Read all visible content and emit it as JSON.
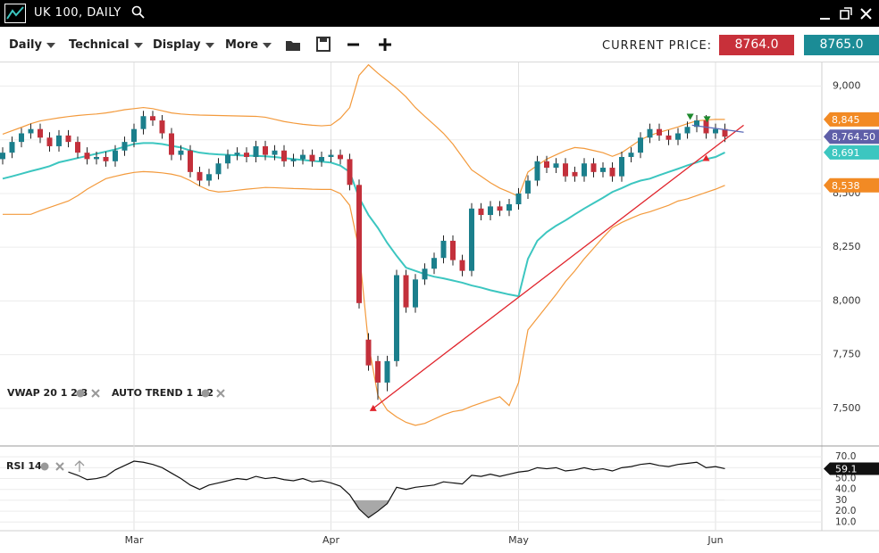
{
  "header": {
    "title": "UK 100, DAILY"
  },
  "toolbar": {
    "menus": [
      "Daily",
      "Technical",
      "Display",
      "More"
    ],
    "current_price_label": "CURRENT PRICE:",
    "bid": "8764.0",
    "ask": "8765.0"
  },
  "chart_data": [
    {
      "type": "candlestick",
      "categories": [
        null,
        null,
        null,
        null,
        null,
        null,
        null,
        null,
        null,
        null,
        null,
        null,
        null,
        null,
        "Mar",
        null,
        null,
        null,
        null,
        null,
        null,
        null,
        null,
        null,
        null,
        null,
        null,
        null,
        null,
        null,
        null,
        null,
        null,
        null,
        null,
        "Apr",
        null,
        null,
        null,
        null,
        null,
        null,
        null,
        null,
        null,
        null,
        null,
        null,
        null,
        null,
        null,
        null,
        null,
        null,
        null,
        "May",
        null,
        null,
        null,
        null,
        null,
        null,
        null,
        null,
        null,
        null,
        null,
        null,
        null,
        null,
        null,
        null,
        null,
        null,
        null,
        null,
        "Jun",
        null
      ],
      "open": [
        8660,
        8690,
        8740,
        8780,
        8800,
        8760,
        8720,
        8770,
        8740,
        8690,
        8660,
        8670,
        8650,
        8700,
        8740,
        8800,
        8860,
        8840,
        8780,
        8680,
        8700,
        8600,
        8560,
        8590,
        8640,
        8680,
        8690,
        8670,
        8720,
        8680,
        8700,
        8650,
        8660,
        8680,
        8650,
        8670,
        8680,
        8660,
        8540,
        7820,
        7720,
        7620,
        7720,
        8120,
        7970,
        8100,
        8150,
        8200,
        8280,
        8190,
        8140,
        8430,
        8400,
        8440,
        8420,
        8450,
        8500,
        8560,
        8650,
        8620,
        8640,
        8600,
        8580,
        8640,
        8600,
        8620,
        8580,
        8670,
        8690,
        8760,
        8800,
        8770,
        8750,
        8780,
        8810,
        8840,
        8780,
        8800
      ],
      "high": [
        8715,
        8765,
        8805,
        8825,
        8825,
        8785,
        8795,
        8795,
        8765,
        8715,
        8695,
        8695,
        8725,
        8765,
        8825,
        8885,
        8885,
        8865,
        8805,
        8725,
        8725,
        8625,
        8615,
        8665,
        8705,
        8715,
        8715,
        8745,
        8745,
        8725,
        8725,
        8685,
        8705,
        8705,
        8695,
        8705,
        8705,
        8685,
        8565,
        7850,
        7745,
        7745,
        8145,
        8145,
        8125,
        8175,
        8225,
        8305,
        8305,
        8215,
        8455,
        8455,
        8465,
        8465,
        8475,
        8525,
        8585,
        8675,
        8675,
        8665,
        8665,
        8625,
        8665,
        8665,
        8645,
        8645,
        8695,
        8715,
        8785,
        8825,
        8825,
        8795,
        8805,
        8835,
        8865,
        8865,
        8825,
        8825
      ],
      "low": [
        8635,
        8665,
        8715,
        8755,
        8735,
        8695,
        8695,
        8715,
        8665,
        8635,
        8635,
        8625,
        8625,
        8675,
        8715,
        8775,
        8815,
        8755,
        8655,
        8655,
        8575,
        8535,
        8535,
        8565,
        8615,
        8655,
        8645,
        8645,
        8655,
        8655,
        8625,
        8625,
        8635,
        8625,
        8625,
        8645,
        8635,
        8515,
        7965,
        7675,
        7540,
        7580,
        7695,
        7945,
        7945,
        8075,
        8125,
        8175,
        8165,
        8115,
        8115,
        8375,
        8375,
        8395,
        8395,
        8425,
        8475,
        8535,
        8595,
        8595,
        8555,
        8555,
        8555,
        8575,
        8575,
        8555,
        8555,
        8645,
        8665,
        8735,
        8745,
        8725,
        8725,
        8755,
        8785,
        8755,
        8755,
        8739.5
      ],
      "close": [
        8690,
        8740,
        8780,
        8800,
        8760,
        8720,
        8770,
        8740,
        8690,
        8660,
        8670,
        8650,
        8700,
        8740,
        8800,
        8860,
        8840,
        8780,
        8680,
        8700,
        8600,
        8560,
        8590,
        8640,
        8680,
        8690,
        8670,
        8720,
        8680,
        8700,
        8650,
        8660,
        8680,
        8650,
        8670,
        8680,
        8660,
        8540,
        7990,
        7700,
        7620,
        7720,
        8120,
        7970,
        8100,
        8150,
        8200,
        8280,
        8190,
        8140,
        8430,
        8400,
        8440,
        8420,
        8450,
        8500,
        8560,
        8650,
        8620,
        8640,
        8580,
        8580,
        8640,
        8600,
        8620,
        8580,
        8670,
        8690,
        8760,
        8800,
        8770,
        8750,
        8780,
        8810,
        8840,
        8780,
        8800,
        8764.5
      ],
      "close_label": "8,764.50",
      "close_tag_color": "#5f5fa8",
      "up_color": "#1b7f8c",
      "down_color": "#c3303b",
      "overlays": [
        {
          "color": "#f39a3c",
          "tag_color": "#f28a24",
          "last_label": "8,845",
          "values": [
            8776,
            8792,
            8808,
            8825,
            8838,
            8845,
            8852,
            8858,
            8863,
            8867,
            8870,
            8875,
            8882,
            8890,
            8895,
            8900,
            8895,
            8885,
            8875,
            8870,
            8867,
            8865,
            8864,
            8863,
            8862,
            8861,
            8860,
            8859,
            8855,
            8845,
            8835,
            8828,
            8822,
            8818,
            8815,
            8818,
            8850,
            8900,
            9050,
            9099,
            9060,
            9025,
            8990,
            8950,
            8900,
            8859,
            8820,
            8780,
            8730,
            8670,
            8610,
            8580,
            8550,
            8525,
            8507,
            8486,
            8600,
            8631,
            8660,
            8680,
            8700,
            8714,
            8710,
            8700,
            8690,
            8673,
            8690,
            8720,
            8750,
            8770,
            8785,
            8797,
            8810,
            8825,
            8838,
            8842,
            8845,
            8845
          ]
        },
        {
          "color": "#3cc6c0",
          "tag_color": "#3cc6c0",
          "last_label": "8,691",
          "values": [
            8569,
            8580,
            8592,
            8604,
            8615,
            8627,
            8645,
            8655,
            8665,
            8675,
            8685,
            8695,
            8705,
            8718,
            8730,
            8735,
            8735,
            8730,
            8722,
            8714,
            8700,
            8690,
            8685,
            8682,
            8680,
            8678,
            8676,
            8675,
            8673,
            8670,
            8665,
            8660,
            8656,
            8652,
            8648,
            8644,
            8630,
            8600,
            8480,
            8400,
            8340,
            8270,
            8210,
            8155,
            8140,
            8125,
            8113,
            8105,
            8095,
            8085,
            8072,
            8062,
            8050,
            8040,
            8030,
            8022,
            8196,
            8280,
            8320,
            8350,
            8375,
            8403,
            8430,
            8455,
            8480,
            8507,
            8525,
            8545,
            8560,
            8569,
            8585,
            8600,
            8615,
            8631,
            8645,
            8660,
            8670,
            8691
          ]
        },
        {
          "color": "#f39a3c",
          "tag_color": "#f28a24",
          "last_label": "8,538",
          "values": [
            8403,
            8403,
            8403,
            8403,
            8420,
            8435,
            8450,
            8465,
            8490,
            8520,
            8545,
            8569,
            8580,
            8590,
            8598,
            8602,
            8600,
            8596,
            8590,
            8580,
            8560,
            8535,
            8515,
            8507,
            8510,
            8515,
            8520,
            8524,
            8528,
            8527,
            8525,
            8523,
            8522,
            8520,
            8519,
            8519,
            8500,
            8445,
            8238,
            7800,
            7560,
            7492,
            7460,
            7435,
            7421,
            7430,
            7450,
            7470,
            7485,
            7492,
            7510,
            7525,
            7540,
            7554,
            7513,
            7620,
            7865,
            7920,
            7975,
            8030,
            8090,
            8140,
            8196,
            8245,
            8295,
            8341,
            8365,
            8385,
            8403,
            8415,
            8430,
            8445,
            8465,
            8475,
            8490,
            8505,
            8520,
            8538
          ]
        }
      ],
      "ylim": [
        7325,
        9110
      ],
      "yticks": [
        {
          "value": 7500,
          "label": "7,500"
        },
        {
          "value": 7750,
          "label": "7,750"
        },
        {
          "value": 8000,
          "label": "8,000"
        },
        {
          "value": 8250,
          "label": "8,250"
        },
        {
          "value": 8500,
          "label": "8,500"
        },
        {
          "value": 8750,
          "label": "8,750"
        },
        {
          "value": 9000,
          "label": "9,000"
        }
      ],
      "grid": true,
      "annotations": [
        "VWAP 20 1 2 3",
        "AUTO TREND 1 1 2"
      ],
      "trend_lines": [
        {
          "color": "#e0242c",
          "x": [
            39.5,
            79
          ],
          "y": [
            7500,
            8818
          ]
        },
        {
          "color": "#5a6ab8",
          "x": [
            73.5,
            79
          ],
          "y": [
            8818,
            8785
          ]
        }
      ],
      "markers": [
        {
          "shape": "up",
          "color": "#e0242c",
          "x": 39.5,
          "y": 7500
        },
        {
          "shape": "up",
          "color": "#e0242c",
          "x": 75,
          "y": 8664
        },
        {
          "shape": "down",
          "color": "#1e8a2e",
          "x": 73.3,
          "y": 8859
        },
        {
          "shape": "down",
          "color": "#1e8a2e",
          "x": 75.1,
          "y": 8847
        }
      ]
    },
    {
      "type": "line",
      "title": "RSI 14",
      "color": "#111111",
      "fill_color": "#a8a8a8",
      "fill_below": 30,
      "values": [
        null,
        null,
        null,
        null,
        null,
        null,
        null,
        56,
        53,
        49,
        50,
        52,
        58,
        62,
        66,
        65,
        63,
        60,
        55,
        50,
        44,
        40,
        44,
        46,
        48,
        50,
        49,
        52,
        50,
        51,
        49,
        48,
        50,
        47,
        48,
        46,
        43,
        35,
        22,
        14,
        20,
        27,
        42,
        40,
        42,
        43,
        44,
        47,
        46,
        45,
        53,
        52,
        54,
        52,
        54,
        56,
        57,
        60,
        59,
        60,
        57,
        58,
        60,
        58,
        59,
        57,
        60,
        61,
        63,
        64,
        62,
        61,
        63,
        64,
        65,
        60,
        61,
        59.1
      ],
      "last_label": "59.1",
      "ylim": [
        2,
        80
      ],
      "yticks": [
        {
          "value": 70,
          "label": "70.0"
        },
        {
          "value": 60,
          "label": "60.0"
        },
        {
          "value": 50,
          "label": "50.0"
        },
        {
          "value": 40,
          "label": "40.0"
        },
        30,
        {
          "value": 20,
          "label": "20.0"
        },
        {
          "value": 10,
          "label": "10.0"
        }
      ]
    }
  ]
}
